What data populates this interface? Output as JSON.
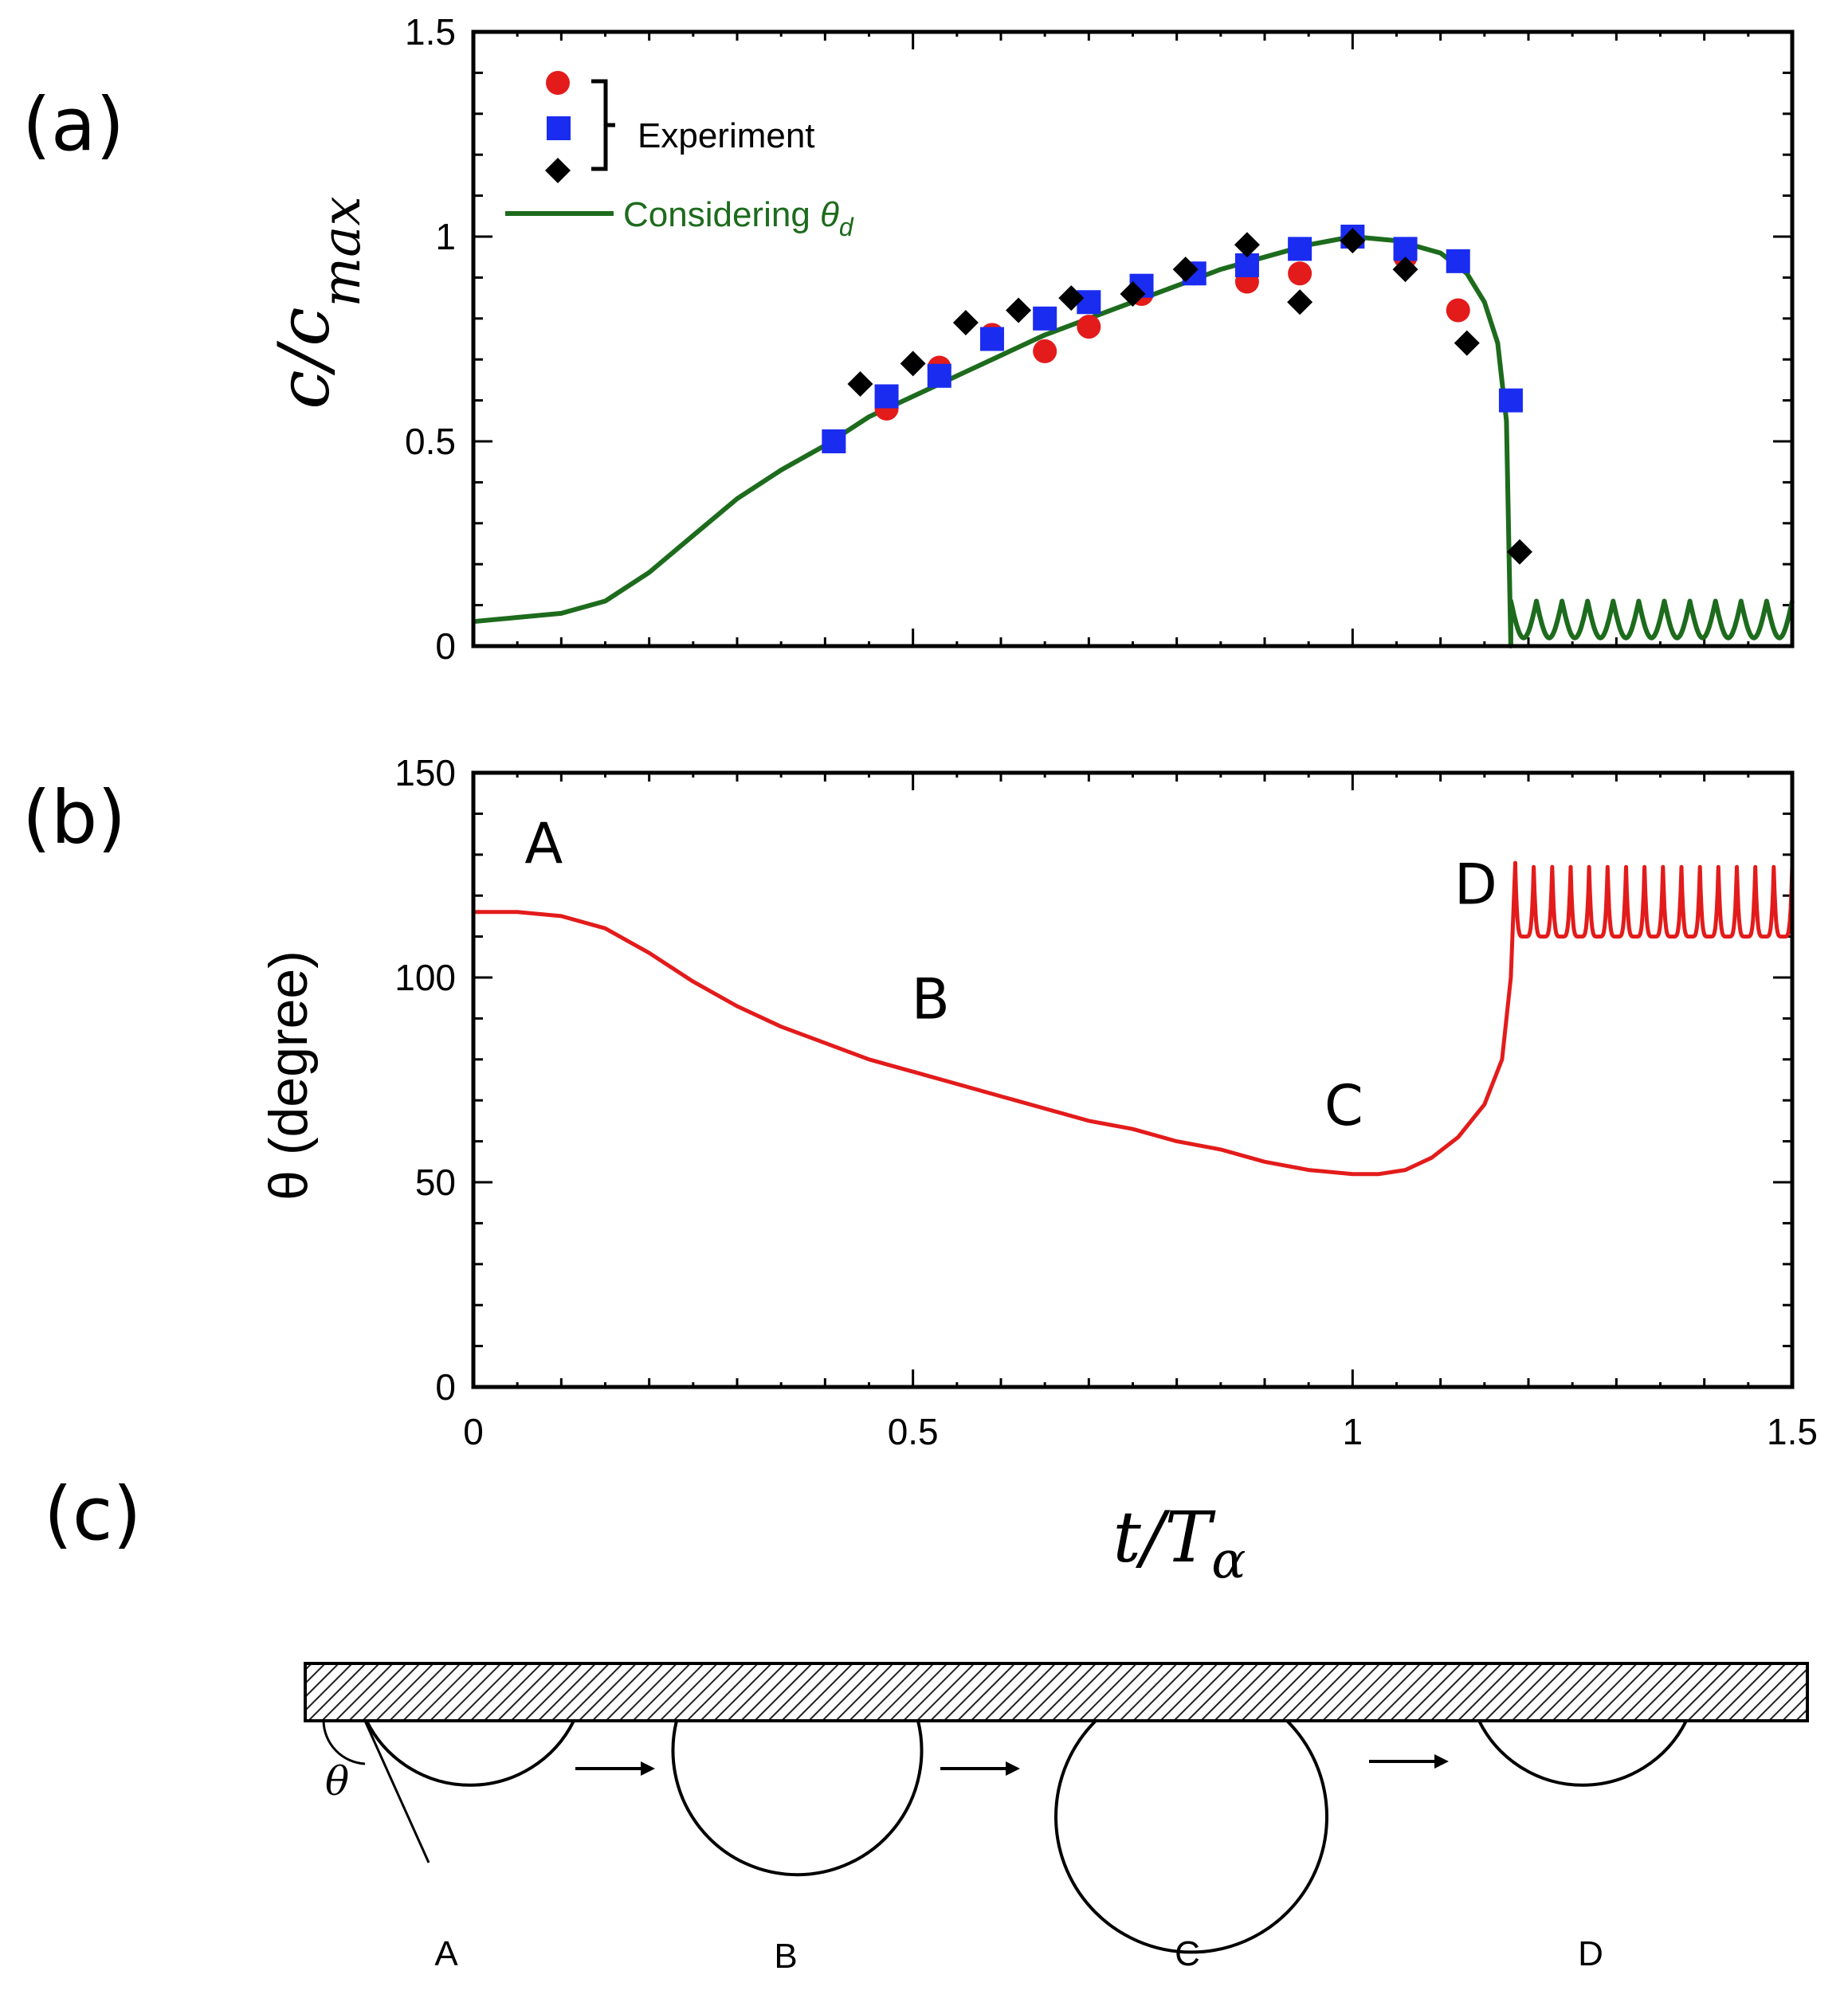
{
  "panels": {
    "a": "(a)",
    "b": "(b)",
    "c": "(c)"
  },
  "colors": {
    "red": "#e31b1b",
    "blue": "#1a2cf0",
    "black": "#000000",
    "green": "#1d6b1d",
    "theta_line": "#e31b1b"
  },
  "chart_data": [
    {
      "type": "scatter",
      "id": "a",
      "ylabel": "c/c_max",
      "xlim": [
        0,
        1.5
      ],
      "ylim": [
        0,
        1.5
      ],
      "yticks": [
        0,
        0.5,
        1,
        1.5
      ],
      "ytick_labels": [
        "0",
        "0.5",
        "1",
        "1.5"
      ],
      "legend": {
        "experiment": "Experiment",
        "model_prefix": "Considering ",
        "model_symbol": "θ",
        "model_subscript": "d"
      },
      "series": [
        {
          "name": "Experiment (circles)",
          "marker": "circle",
          "color": "#e31b1b",
          "x": [
            0.47,
            0.53,
            0.59,
            0.65,
            0.7,
            0.76,
            0.82,
            0.88,
            0.94,
            1.0,
            1.06,
            1.12
          ],
          "y": [
            0.58,
            0.68,
            0.76,
            0.72,
            0.78,
            0.86,
            0.91,
            0.89,
            0.91,
            1.0,
            0.95,
            0.82
          ]
        },
        {
          "name": "Experiment (squares)",
          "marker": "square",
          "color": "#1a2cf0",
          "x": [
            0.41,
            0.47,
            0.53,
            0.59,
            0.65,
            0.7,
            0.76,
            0.82,
            0.88,
            0.94,
            1.0,
            1.06,
            1.12,
            1.18
          ],
          "y": [
            0.5,
            0.61,
            0.66,
            0.75,
            0.8,
            0.84,
            0.88,
            0.91,
            0.93,
            0.97,
            1.0,
            0.97,
            0.94,
            0.6
          ]
        },
        {
          "name": "Experiment (diamonds)",
          "marker": "diamond",
          "color": "#000000",
          "x": [
            0.44,
            0.5,
            0.56,
            0.62,
            0.68,
            0.75,
            0.81,
            0.88,
            0.94,
            1.0,
            1.06,
            1.13,
            1.19
          ],
          "y": [
            0.64,
            0.69,
            0.79,
            0.82,
            0.85,
            0.86,
            0.92,
            0.98,
            0.84,
            0.99,
            0.92,
            0.74,
            0.23
          ]
        },
        {
          "name": "Considering θd",
          "type": "line",
          "color": "#1d6b1d",
          "x": [
            0.0,
            0.05,
            0.1,
            0.15,
            0.2,
            0.25,
            0.3,
            0.35,
            0.4,
            0.45,
            0.5,
            0.55,
            0.6,
            0.65,
            0.7,
            0.75,
            0.8,
            0.85,
            0.9,
            0.95,
            1.0,
            1.05,
            1.1,
            1.13,
            1.15,
            1.165,
            1.175,
            1.18
          ],
          "y": [
            0.06,
            0.07,
            0.08,
            0.11,
            0.18,
            0.27,
            0.36,
            0.43,
            0.49,
            0.56,
            0.61,
            0.66,
            0.71,
            0.76,
            0.8,
            0.84,
            0.88,
            0.92,
            0.95,
            0.98,
            1.0,
            0.99,
            0.96,
            0.91,
            0.84,
            0.74,
            0.55,
            0.0
          ],
          "oscillation": {
            "x_start": 1.18,
            "x_end": 1.5,
            "low": 0.02,
            "high": 0.11,
            "cycles": 11
          }
        }
      ]
    },
    {
      "type": "line",
      "id": "b",
      "ylabel": "θ (degree)",
      "xlabel": "t/T",
      "xlabel_subscript": "α",
      "xlim": [
        0,
        1.5
      ],
      "ylim": [
        0,
        150
      ],
      "xticks": [
        0,
        0.5,
        1,
        1.5
      ],
      "xtick_labels": [
        "0",
        "0.5",
        "1",
        "1.5"
      ],
      "yticks": [
        0,
        50,
        100,
        150
      ],
      "ytick_labels": [
        "0",
        "50",
        "100",
        "150"
      ],
      "series": [
        {
          "name": "θ",
          "color": "#e31b1b",
          "x": [
            0.0,
            0.05,
            0.1,
            0.15,
            0.2,
            0.25,
            0.3,
            0.35,
            0.4,
            0.45,
            0.5,
            0.55,
            0.6,
            0.65,
            0.7,
            0.75,
            0.8,
            0.85,
            0.9,
            0.95,
            1.0,
            1.03,
            1.06,
            1.09,
            1.12,
            1.15,
            1.17,
            1.18,
            1.185
          ],
          "y": [
            116,
            116,
            115,
            112,
            106,
            99,
            93,
            88,
            84,
            80,
            77,
            74,
            71,
            68,
            65,
            63,
            60,
            58,
            55,
            53,
            52,
            52,
            53,
            56,
            61,
            69,
            80,
            100,
            128
          ],
          "oscillation": {
            "x_start": 1.185,
            "x_end": 1.5,
            "low": 110,
            "high": 127,
            "cycles": 15
          }
        }
      ],
      "annotations": [
        {
          "text": "A",
          "x": 0.08,
          "y": 128
        },
        {
          "text": "B",
          "x": 0.52,
          "y": 90
        },
        {
          "text": "C",
          "x": 0.99,
          "y": 64
        },
        {
          "text": "D",
          "x": 1.14,
          "y": 118
        }
      ]
    }
  ],
  "diagram": {
    "theta_label": "θ",
    "stages": [
      "A",
      "B",
      "C",
      "D"
    ]
  }
}
